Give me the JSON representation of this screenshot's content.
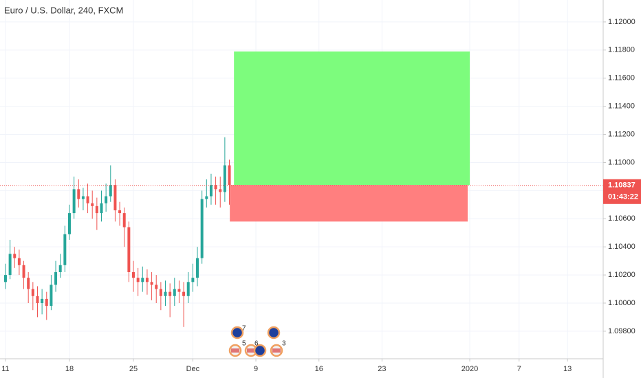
{
  "chart_data": {
    "type": "candlestick",
    "title": "Euro / U.S. Dollar, 240, FXCM",
    "x": [
      0,
      0.5,
      1,
      1.5,
      2,
      2.5,
      3,
      3.5,
      4,
      4.5,
      5,
      5.5,
      6,
      6.5,
      7,
      7.5,
      8,
      8.5,
      9,
      9.5,
      10,
      10.5,
      11,
      11.5,
      12,
      12.5,
      13,
      13.5,
      14,
      14.5,
      15,
      15.5,
      16,
      16.5,
      17,
      17.5,
      18,
      18.5,
      19,
      19.5,
      20,
      20.5,
      21,
      21.5,
      22,
      22.5,
      23,
      23.5,
      24,
      24.5
    ],
    "open": [
      1.1015,
      1.102,
      1.1035,
      1.1032,
      1.1027,
      1.1018,
      1.101,
      1.1005,
      1.1,
      1.1003,
      1.0998,
      1.1013,
      1.1022,
      1.1027,
      1.1049,
      1.1064,
      1.1081,
      1.1074,
      1.1076,
      1.1071,
      1.1069,
      1.1064,
      1.1071,
      1.1076,
      1.1084,
      1.1066,
      1.1064,
      1.1054,
      1.1022,
      1.1018,
      1.1015,
      1.1018,
      1.1015,
      1.1013,
      1.101,
      1.1005,
      1.1008,
      1.1005,
      1.101,
      1.1008,
      1.1005,
      1.1015,
      1.1018,
      1.1032,
      1.1074,
      1.1076,
      1.1084,
      1.1081,
      1.1079,
      1.1098
    ],
    "high": [
      1.1028,
      1.1045,
      1.104,
      1.1038,
      1.103,
      1.1022,
      1.1015,
      1.1012,
      1.101,
      1.1008,
      1.102,
      1.103,
      1.1035,
      1.1055,
      1.107,
      1.109,
      1.1088,
      1.1082,
      1.1085,
      1.108,
      1.1075,
      1.108,
      1.1085,
      1.1098,
      1.1088,
      1.1072,
      1.1068,
      1.1058,
      1.103,
      1.1025,
      1.1026,
      1.1024,
      1.1022,
      1.102,
      1.1015,
      1.1016,
      1.1014,
      1.1018,
      1.1016,
      1.1015,
      1.1022,
      1.1028,
      1.104,
      1.108,
      1.1088,
      1.1092,
      1.109,
      1.109,
      1.1118,
      1.1102
    ],
    "low": [
      1.101,
      1.1017,
      1.1025,
      1.102,
      1.101,
      1.1,
      1.0995,
      1.099,
      1.0992,
      1.0988,
      1.0995,
      1.1008,
      1.1018,
      1.1022,
      1.1045,
      1.106,
      1.1068,
      1.1066,
      1.1064,
      1.106,
      1.1052,
      1.1058,
      1.1065,
      1.1072,
      1.1058,
      1.1055,
      1.104,
      1.1015,
      1.1008,
      1.1005,
      1.1008,
      1.1006,
      1.1002,
      1.1,
      1.0995,
      1.0998,
      1.099,
      1.0998,
      1.1,
      1.0983,
      1.1,
      1.1008,
      1.1012,
      1.1028,
      1.1068,
      1.107,
      1.107,
      1.1068,
      1.1072,
      1.107
    ],
    "close": [
      1.102,
      1.1035,
      1.1032,
      1.1027,
      1.1018,
      1.101,
      1.1005,
      1.1,
      1.1003,
      1.0998,
      1.1013,
      1.1022,
      1.1027,
      1.1049,
      1.1064,
      1.1081,
      1.1074,
      1.1076,
      1.1071,
      1.1069,
      1.1064,
      1.1071,
      1.1076,
      1.1084,
      1.1066,
      1.1064,
      1.1054,
      1.1022,
      1.1018,
      1.1015,
      1.1018,
      1.1015,
      1.1013,
      1.101,
      1.1005,
      1.1008,
      1.1005,
      1.101,
      1.1008,
      1.1005,
      1.1015,
      1.1018,
      1.1032,
      1.1074,
      1.1076,
      1.1084,
      1.1081,
      1.1079,
      1.1098,
      1.1084
    ],
    "up_color": "#26a69a",
    "down_color": "#ef5350",
    "xlim": [
      -0.6,
      65.4
    ],
    "xticks": [
      {
        "value": 0,
        "label": "11"
      },
      {
        "value": 7,
        "label": "18"
      },
      {
        "value": 14,
        "label": "25"
      },
      {
        "value": 20.5,
        "label": "Dec"
      },
      {
        "value": 27.4,
        "label": "9"
      },
      {
        "value": 34.3,
        "label": "16"
      },
      {
        "value": 41.2,
        "label": "23"
      },
      {
        "value": 50.8,
        "label": "2020"
      },
      {
        "value": 56.2,
        "label": "7"
      },
      {
        "value": 61.5,
        "label": "13"
      }
    ],
    "ylim": [
      1.09604,
      1.12156
    ],
    "yticks": [
      {
        "value": 1.098,
        "label": "1.09800"
      },
      {
        "value": 1.1,
        "label": "1.10000"
      },
      {
        "value": 1.102,
        "label": "1.10200"
      },
      {
        "value": 1.104,
        "label": "1.10400"
      },
      {
        "value": 1.106,
        "label": "1.10600"
      },
      {
        "value": 1.108,
        "label": "1.10800"
      },
      {
        "value": 1.11,
        "label": "1.11000"
      },
      {
        "value": 1.112,
        "label": "1.11200"
      },
      {
        "value": 1.114,
        "label": "1.11400"
      },
      {
        "value": 1.116,
        "label": "1.11600"
      },
      {
        "value": 1.118,
        "label": "1.11800"
      },
      {
        "value": 1.12,
        "label": "1.12000"
      }
    ],
    "grid": true,
    "last_price": {
      "value": 1.10837,
      "label": "1.10837"
    },
    "last_price_color": "#ef5350",
    "countdown": "01:43:22",
    "position": {
      "x_start": 25,
      "x_end": 50.8,
      "entry": 1.1084,
      "target": 1.1179,
      "stop": 1.1058,
      "target_color": "#7dfc7d",
      "stop_color": "#ff7f7f"
    },
    "event_counts": [
      7,
      5,
      6,
      3
    ]
  }
}
